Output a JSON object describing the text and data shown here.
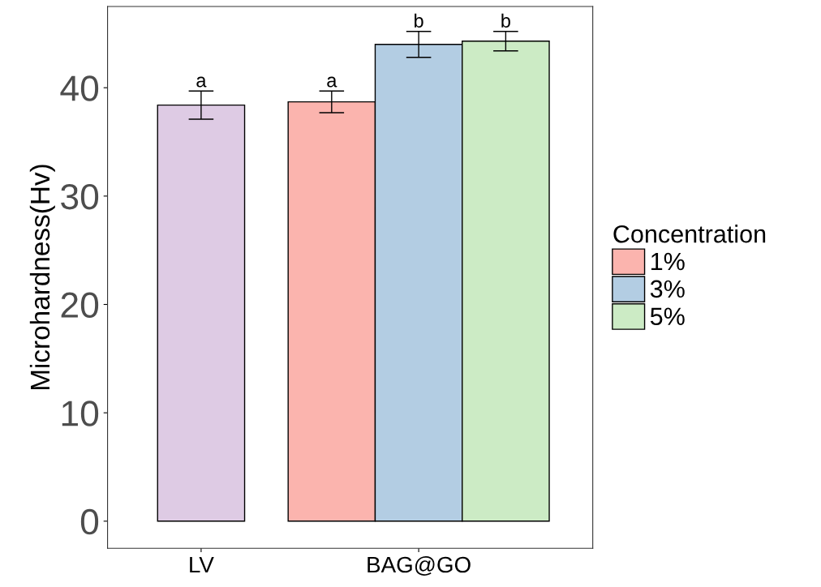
{
  "chart_data": {
    "type": "bar",
    "categories": [
      "LV",
      "BAG@GO"
    ],
    "ylabel": "Microhardness(Hv)",
    "legend_title": "Concentration",
    "series": [
      {
        "color": "#decbe4",
        "values": [
          38.4,
          null
        ],
        "errors": [
          1.3,
          null
        ],
        "value_labels": [
          "a",
          null
        ]
      },
      {
        "name": "1%",
        "color": "#fbb4ae",
        "values": [
          null,
          38.7
        ],
        "errors": [
          null,
          1.0
        ],
        "value_labels": [
          null,
          "a"
        ]
      },
      {
        "name": "3%",
        "color": "#b3cde3",
        "values": [
          null,
          44.0
        ],
        "errors": [
          null,
          1.2
        ],
        "value_labels": [
          null,
          "b"
        ]
      },
      {
        "name": "5%",
        "color": "#ccebc5",
        "values": [
          null,
          44.3
        ],
        "errors": [
          null,
          0.9
        ],
        "value_labels": [
          null,
          "b"
        ]
      }
    ],
    "ylim": [
      -2.5,
      47.5
    ],
    "yticks": [
      0,
      10,
      20,
      30,
      40
    ],
    "grid": false,
    "legend": "right"
  }
}
